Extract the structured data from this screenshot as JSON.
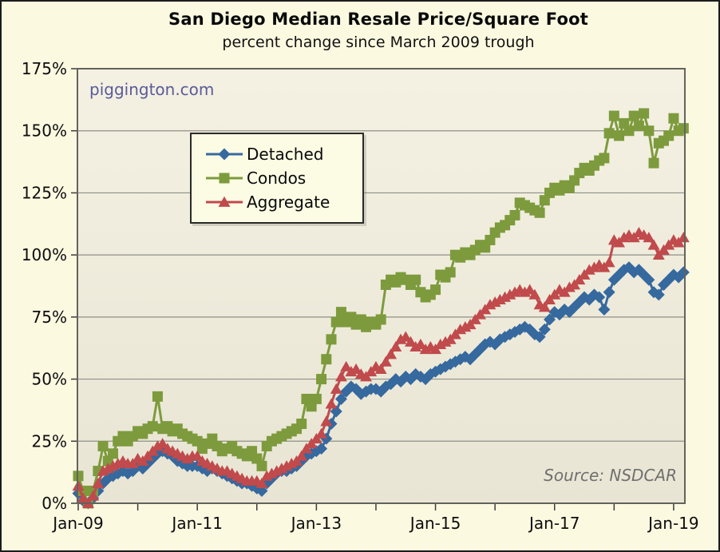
{
  "watermark": "piggington.com",
  "source_label": "Source: NSDCAR",
  "chart_data": {
    "type": "line",
    "title": "San Diego Median Resale Price/Square Foot",
    "subtitle": "percent change since March 2009 trough",
    "x_start": "Jan-2009",
    "x_end": "Mar-2019",
    "x_interval": "monthly",
    "ylabel": "percent change since March 2009 trough",
    "ylim": [
      0,
      175
    ],
    "y_tick_step": 25,
    "y_ticks": [
      "0%",
      "25%",
      "50%",
      "75%",
      "100%",
      "125%",
      "150%",
      "175%"
    ],
    "x_tick_months": [
      0,
      12,
      24,
      36,
      48,
      60,
      72,
      84,
      96,
      108,
      120
    ],
    "x_tick_labels": [
      {
        "month": 0,
        "label": "Jan-09"
      },
      {
        "month": 24,
        "label": "Jan-11"
      },
      {
        "month": 48,
        "label": "Jan-13"
      },
      {
        "month": 72,
        "label": "Jan-15"
      },
      {
        "month": 96,
        "label": "Jan-17"
      },
      {
        "month": 120,
        "label": "Jan-19"
      }
    ],
    "grid": "horizontal",
    "legend_position": "upper-left-inside",
    "series": [
      {
        "name": "Detached",
        "color": "#36699e",
        "marker": "diamond",
        "values": [
          4,
          1,
          0,
          2,
          5,
          8,
          10,
          11,
          12,
          13,
          12,
          13,
          15,
          14,
          16,
          18,
          20,
          21,
          20,
          19,
          17,
          16,
          15,
          15,
          15,
          14,
          13,
          14,
          13,
          12,
          11,
          10,
          9,
          8,
          8,
          7,
          6,
          5,
          8,
          10,
          12,
          13,
          13,
          14,
          15,
          17,
          19,
          20,
          21,
          22,
          26,
          32,
          37,
          42,
          45,
          47,
          46,
          44,
          45,
          46,
          46,
          45,
          47,
          48,
          50,
          49,
          51,
          50,
          52,
          51,
          50,
          52,
          53,
          54,
          55,
          56,
          57,
          58,
          59,
          58,
          60,
          62,
          64,
          65,
          64,
          66,
          67,
          68,
          69,
          70,
          71,
          70,
          68,
          67,
          70,
          74,
          77,
          76,
          78,
          77,
          79,
          81,
          83,
          82,
          84,
          83,
          78,
          85,
          90,
          92,
          94,
          95,
          93,
          94,
          92,
          90,
          85,
          84,
          88,
          90,
          92,
          91,
          93
        ]
      },
      {
        "name": "Condos",
        "color": "#7d9b3d",
        "marker": "square",
        "values": [
          11,
          5,
          0,
          5,
          13,
          23,
          17,
          20,
          25,
          27,
          25,
          27,
          29,
          28,
          30,
          31,
          43,
          30,
          31,
          29,
          30,
          28,
          27,
          26,
          25,
          22,
          24,
          26,
          23,
          21,
          22,
          23,
          21,
          20,
          19,
          21,
          18,
          15,
          23,
          25,
          26,
          27,
          28,
          29,
          30,
          32,
          42,
          39,
          42,
          50,
          58,
          66,
          73,
          77,
          73,
          75,
          72,
          74,
          71,
          73,
          72,
          74,
          88,
          90,
          89,
          91,
          90,
          88,
          90,
          85,
          83,
          84,
          86,
          92,
          91,
          93,
          100,
          99,
          101,
          100,
          102,
          104,
          103,
          106,
          109,
          111,
          112,
          114,
          116,
          121,
          120,
          119,
          118,
          117,
          122,
          125,
          127,
          126,
          128,
          127,
          130,
          133,
          135,
          134,
          136,
          138,
          139,
          149,
          156,
          148,
          153,
          150,
          156,
          152,
          157,
          150,
          137,
          145,
          146,
          148,
          155,
          150,
          151
        ]
      },
      {
        "name": "Aggregate",
        "color": "#c04a4c",
        "marker": "triangle",
        "values": [
          7,
          2,
          0,
          3,
          8,
          13,
          14,
          15,
          16,
          17,
          16,
          16,
          18,
          17,
          19,
          21,
          23,
          24,
          22,
          21,
          20,
          19,
          18,
          19,
          19,
          17,
          16,
          15,
          14,
          13,
          13,
          12,
          11,
          10,
          9,
          9,
          9,
          8,
          11,
          12,
          13,
          14,
          15,
          16,
          17,
          19,
          22,
          24,
          26,
          28,
          33,
          40,
          46,
          51,
          55,
          53,
          54,
          52,
          51,
          53,
          55,
          54,
          57,
          60,
          63,
          66,
          67,
          65,
          63,
          64,
          62,
          63,
          62,
          64,
          65,
          66,
          68,
          70,
          71,
          72,
          74,
          76,
          78,
          80,
          81,
          82,
          83,
          84,
          85,
          86,
          85,
          86,
          84,
          80,
          79,
          82,
          84,
          86,
          85,
          87,
          88,
          90,
          92,
          94,
          95,
          96,
          95,
          97,
          106,
          105,
          107,
          108,
          107,
          109,
          108,
          107,
          104,
          100,
          102,
          104,
          106,
          105,
          107
        ]
      }
    ]
  },
  "legend": {
    "items": [
      "Detached",
      "Condos",
      "Aggregate"
    ]
  }
}
